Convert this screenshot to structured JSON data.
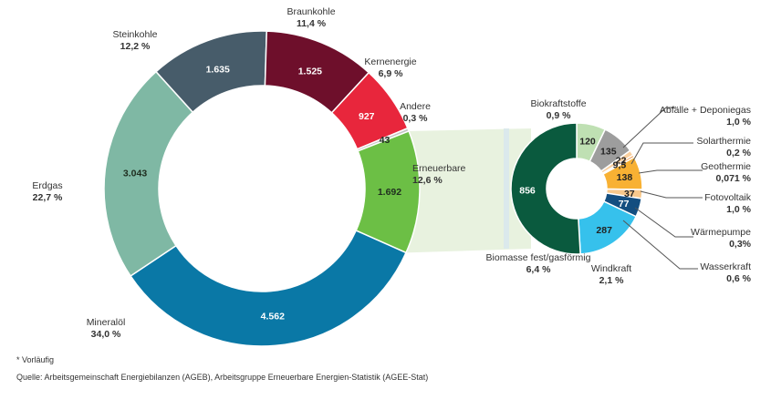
{
  "chart_data": [
    {
      "type": "pie",
      "unit": "",
      "slices": [
        {
          "name": "Mineralöl",
          "value": 4562,
          "value_label": "4.562",
          "share_label": "34,0 %",
          "color": "#0a78a6"
        },
        {
          "name": "Erdgas",
          "value": 3043,
          "value_label": "3.043",
          "share_label": "22,7 %",
          "color": "#7fb8a4"
        },
        {
          "name": "Steinkohle",
          "value": 1635,
          "value_label": "1.635",
          "share_label": "12,2 %",
          "color": "#475c6a"
        },
        {
          "name": "Braunkohle",
          "value": 1525,
          "value_label": "1.525",
          "share_label": "11,4 %",
          "color": "#6e0f2b"
        },
        {
          "name": "Kernenergie",
          "value": 927,
          "value_label": "927",
          "share_label": "6,9 %",
          "color": "#e8263c"
        },
        {
          "name": "Andere",
          "value": 43,
          "value_label": "43",
          "share_label": "0,3 %",
          "color": "#c4c4c4"
        },
        {
          "name": "Erneuerbare",
          "value": 1692,
          "value_label": "1.692",
          "share_label": "12,6 %",
          "color": "#6cbf45"
        }
      ]
    },
    {
      "type": "pie",
      "slices": [
        {
          "name": "Biokraftstoffe",
          "value": 120,
          "value_label": "120",
          "share_label": "0,9 %",
          "color": "#bfe0b3"
        },
        {
          "name": "Abfälle + Deponiegas",
          "value": 135,
          "value_label": "135",
          "share_label": "1,0 %",
          "color": "#9d9d9d"
        },
        {
          "name": "Solarthermie",
          "value": 22,
          "value_label": "22",
          "share_label": "0,2 %",
          "color": "#f9cf9f"
        },
        {
          "name": "Geothermie",
          "value": 9.5,
          "value_label": "9,5",
          "share_label": "0,071 %",
          "color": "#f0923a"
        },
        {
          "name": "Fotovoltaik",
          "value": 138,
          "value_label": "138",
          "share_label": "1,0 %",
          "color": "#f8b133"
        },
        {
          "name": "Wärmepumpe",
          "value": 37,
          "value_label": "37",
          "share_label": "0,3%",
          "color": "#f7c88c"
        },
        {
          "name": "Wasserkraft",
          "value": 77,
          "value_label": "77",
          "share_label": "0,6 %",
          "color": "#134e80"
        },
        {
          "name": "Windkraft",
          "value": 287,
          "value_label": "287",
          "share_label": "2,1 %",
          "color": "#36c1ec"
        },
        {
          "name": "Biomasse fest/gasförmig",
          "value": 856,
          "value_label": "856",
          "share_label": "6,4 %",
          "color": "#0a5a3e"
        }
      ]
    }
  ],
  "footnotes": {
    "preliminary": "* Vorläufig",
    "source": "Quelle: Arbeitsgemeinschaft Energiebilanzen (AGEB), Arbeitsgruppe Erneuerbare Energien-Statistik (AGEE-Stat)"
  }
}
